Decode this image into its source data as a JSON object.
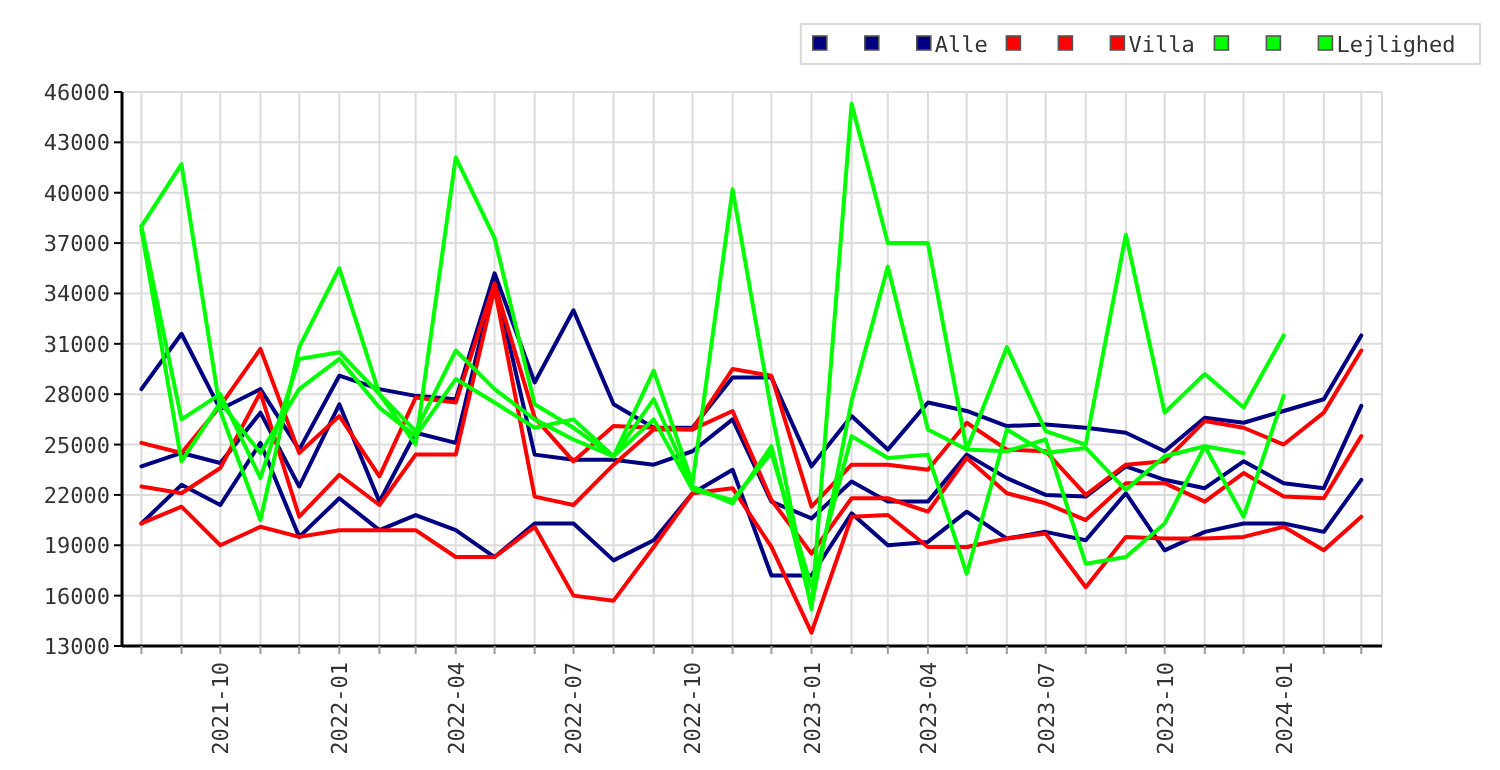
{
  "chart_data": {
    "type": "line",
    "x": [
      "2021-08",
      "2021-09",
      "2021-10",
      "2021-11",
      "2021-12",
      "2022-01",
      "2022-02",
      "2022-03",
      "2022-04",
      "2022-05",
      "2022-06",
      "2022-07",
      "2022-08",
      "2022-09",
      "2022-10",
      "2022-11",
      "2022-12",
      "2023-01",
      "2023-02",
      "2023-03",
      "2023-04",
      "2023-05",
      "2023-06",
      "2023-07",
      "2023-08",
      "2023-09",
      "2023-10",
      "2023-11",
      "2023-12",
      "2024-01",
      "2024-02",
      "2024-03"
    ],
    "xlim": [
      "2021-07-17",
      "2024-03-17"
    ],
    "xticks": [
      {
        "value": "2021-08",
        "label": null
      },
      {
        "value": "2021-09",
        "label": null
      },
      {
        "value": "2021-10",
        "label": "2021-10"
      },
      {
        "value": "2021-11",
        "label": null
      },
      {
        "value": "2021-12",
        "label": null
      },
      {
        "value": "2022-01",
        "label": "2022-01"
      },
      {
        "value": "2022-02",
        "label": null
      },
      {
        "value": "2022-03",
        "label": null
      },
      {
        "value": "2022-04",
        "label": "2022-04"
      },
      {
        "value": "2022-05",
        "label": null
      },
      {
        "value": "2022-06",
        "label": null
      },
      {
        "value": "2022-07",
        "label": "2022-07"
      },
      {
        "value": "2022-08",
        "label": null
      },
      {
        "value": "2022-09",
        "label": null
      },
      {
        "value": "2022-10",
        "label": "2022-10"
      },
      {
        "value": "2022-11",
        "label": null
      },
      {
        "value": "2022-12",
        "label": null
      },
      {
        "value": "2023-01",
        "label": "2023-01"
      },
      {
        "value": "2023-02",
        "label": null
      },
      {
        "value": "2023-03",
        "label": null
      },
      {
        "value": "2023-04",
        "label": "2023-04"
      },
      {
        "value": "2023-05",
        "label": null
      },
      {
        "value": "2023-06",
        "label": null
      },
      {
        "value": "2023-07",
        "label": "2023-07"
      },
      {
        "value": "2023-08",
        "label": null
      },
      {
        "value": "2023-09",
        "label": null
      },
      {
        "value": "2023-10",
        "label": "2023-10"
      },
      {
        "value": "2023-11",
        "label": null
      },
      {
        "value": "2023-12",
        "label": null
      },
      {
        "value": "2024-01",
        "label": "2024-01"
      },
      {
        "value": "2024-02",
        "label": null
      },
      {
        "value": "2024-03",
        "label": null
      }
    ],
    "ylim": [
      13000,
      46000
    ],
    "yticks": [
      13000,
      16000,
      19000,
      22000,
      25000,
      28000,
      31000,
      34000,
      37000,
      40000,
      43000,
      46000
    ],
    "grid": true,
    "legend": "top right",
    "marker": "none",
    "line_style": "solid",
    "series": [
      {
        "color": "#000080",
        "values": [
          28300,
          31600,
          27100,
          28300,
          24700,
          29100,
          28300,
          27900,
          27700,
          35200,
          28700,
          33000,
          27400,
          26000,
          26000,
          29000,
          29000,
          23700,
          26700,
          24700,
          27500,
          27000,
          26100,
          26200,
          26000,
          25700,
          24600,
          26600,
          26300,
          27000,
          27700,
          31500
        ]
      },
      {
        "color": "#000080",
        "values": [
          23700,
          24500,
          23900,
          26900,
          22500,
          27400,
          21600,
          25700,
          25100,
          34800,
          24400,
          24100,
          24100,
          23800,
          24600,
          26500,
          21600,
          20600,
          22800,
          21600,
          21600,
          24400,
          23000,
          22000,
          21900,
          23700,
          22900,
          22400,
          24000,
          22700,
          22400,
          27300
        ]
      },
      {
        "name": "Alle",
        "color": "#000080",
        "values": [
          20300,
          22600,
          21400,
          25100,
          19500,
          21800,
          19900,
          20800,
          19900,
          18300,
          20300,
          20300,
          18100,
          19300,
          22100,
          23500,
          17200,
          17200,
          20900,
          19000,
          19200,
          21000,
          19400,
          19800,
          19300,
          22100,
          18700,
          19800,
          20300,
          20300,
          19800,
          22900
        ]
      },
      {
        "color": "#ff0000",
        "values": [
          25100,
          24500,
          27300,
          30700,
          24500,
          26700,
          23100,
          27800,
          27500,
          34600,
          26600,
          24000,
          26100,
          26000,
          25900,
          29500,
          29100,
          21300,
          23800,
          23800,
          23500,
          26300,
          24700,
          24600,
          22000,
          23800,
          24000,
          26400,
          26000,
          25000,
          26900,
          30600
        ]
      },
      {
        "color": "#ff0000",
        "values": [
          22500,
          22100,
          23600,
          28100,
          20700,
          23200,
          21400,
          24400,
          24400,
          34300,
          21900,
          21400,
          23800,
          25900,
          25900,
          27000,
          21700,
          18500,
          21800,
          21800,
          21000,
          24200,
          22100,
          21500,
          20500,
          22700,
          22700,
          21600,
          23300,
          21900,
          21800,
          25500
        ]
      },
      {
        "name": "Villa",
        "color": "#ff0000",
        "values": [
          20300,
          21300,
          19000,
          20100,
          19500,
          19900,
          19900,
          19900,
          18300,
          18300,
          20100,
          16000,
          15700,
          18900,
          22100,
          22400,
          18900,
          13800,
          20700,
          20800,
          18900,
          18900,
          19400,
          19700,
          16500,
          19500,
          19400,
          19400,
          19500,
          20100,
          18700,
          20700
        ]
      },
      {
        "color": "#00ff00",
        "values": [
          38000,
          41700,
          27000,
          20500,
          30800,
          35500,
          28000,
          25000,
          42100,
          37300,
          27400,
          26000,
          24300,
          29400,
          22700,
          40200,
          27000,
          15200,
          45300,
          37000,
          37000,
          24700,
          30800,
          25800,
          25000,
          37500,
          26900,
          29200,
          27200,
          31500,
          null,
          null
        ]
      },
      {
        "color": "#00ff00",
        "values": [
          38000,
          26500,
          28000,
          23000,
          30100,
          30500,
          28000,
          25800,
          30600,
          28300,
          26500,
          25300,
          24300,
          27700,
          22500,
          21500,
          24900,
          15400,
          27600,
          35600,
          25900,
          24700,
          24600,
          25300,
          17900,
          18300,
          20300,
          24900,
          20700,
          27900,
          null,
          null
        ]
      },
      {
        "name": "Lejlighed",
        "color": "#00ff00",
        "values": [
          37800,
          24000,
          27500,
          24500,
          28300,
          30100,
          27200,
          25500,
          28900,
          27500,
          26000,
          26500,
          24300,
          26500,
          22300,
          21700,
          24500,
          16500,
          25500,
          24200,
          24400,
          17300,
          25900,
          24500,
          24800,
          22300,
          24300,
          24900,
          24500,
          null,
          null,
          null
        ]
      }
    ]
  }
}
